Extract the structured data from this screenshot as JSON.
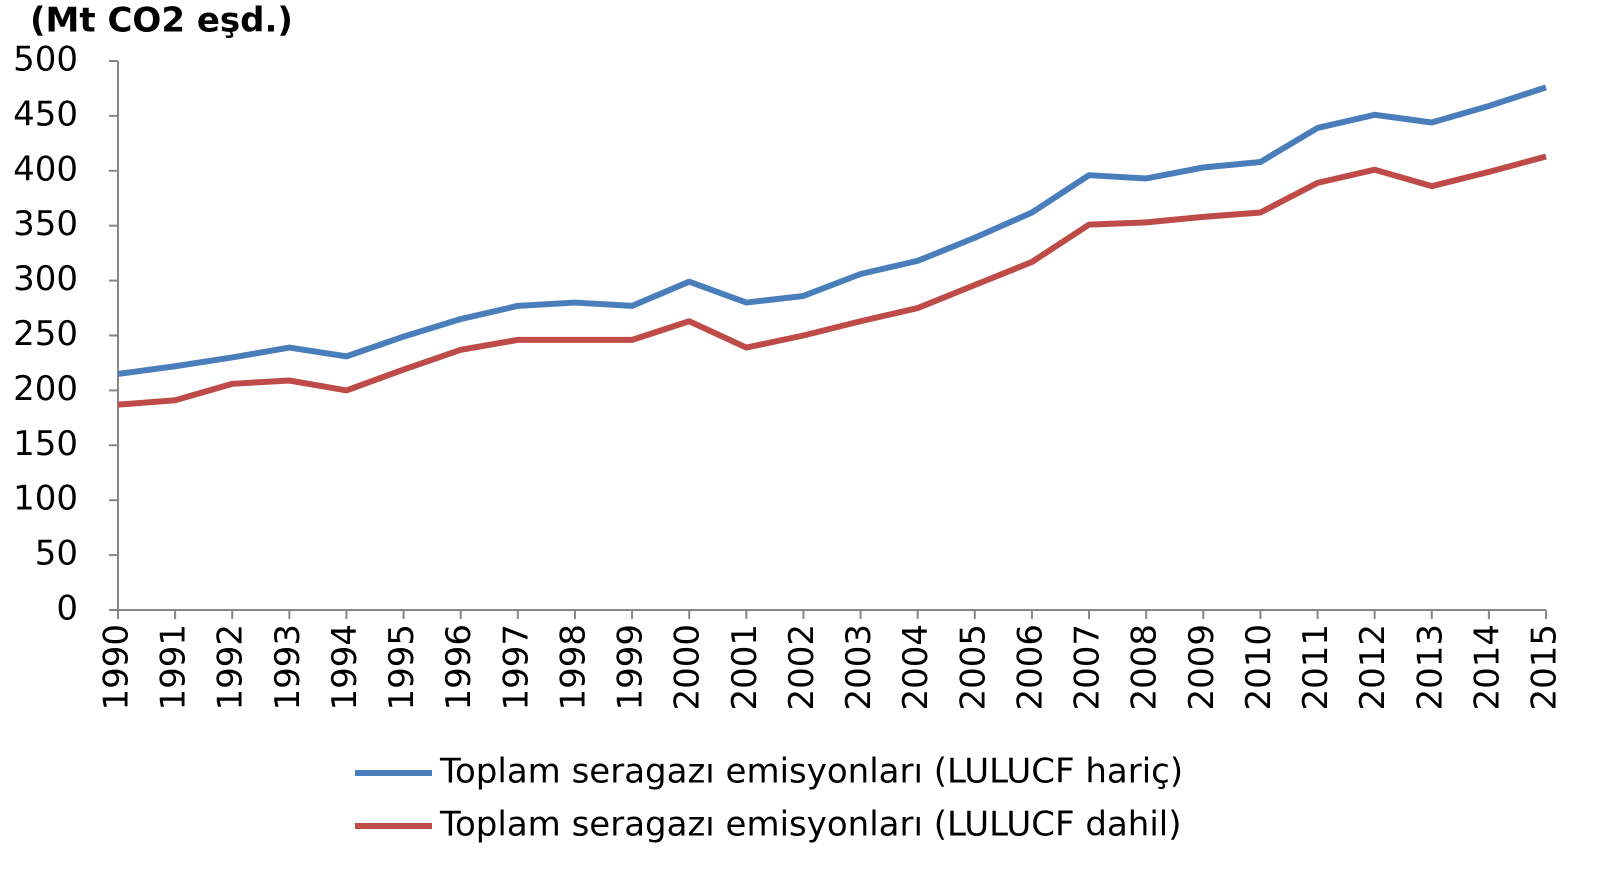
{
  "chart_data": {
    "type": "line",
    "y_label": "(Mt CO2 eşd.)",
    "categories": [
      "1990",
      "1991",
      "1992",
      "1993",
      "1994",
      "1995",
      "1996",
      "1997",
      "1998",
      "1999",
      "2000",
      "2001",
      "2002",
      "2003",
      "2004",
      "2005",
      "2006",
      "2007",
      "2008",
      "2009",
      "2010",
      "2011",
      "2012",
      "2013",
      "2014",
      "2015"
    ],
    "series": [
      {
        "name": "Toplam seragazı emisyonları (LULUCF hariç)",
        "color": "#4a7ebb",
        "values": [
          215,
          222,
          230,
          239,
          231,
          249,
          265,
          277,
          280,
          277,
          299,
          280,
          286,
          306,
          318,
          339,
          362,
          396,
          393,
          403,
          408,
          439,
          451,
          444,
          459,
          476
        ]
      },
      {
        "name": "Toplam seragazı emisyonları (LULUCF dahil)",
        "color": "#be4b48",
        "values": [
          187,
          191,
          206,
          209,
          200,
          219,
          237,
          246,
          246,
          246,
          263,
          239,
          250,
          263,
          275,
          296,
          317,
          351,
          353,
          358,
          362,
          389,
          401,
          386,
          399,
          413
        ]
      }
    ],
    "ylim": [
      0,
      500
    ],
    "yticks": [
      0,
      50,
      100,
      150,
      200,
      250,
      300,
      350,
      400,
      450,
      500
    ],
    "grid": false,
    "legend": "bottom"
  }
}
